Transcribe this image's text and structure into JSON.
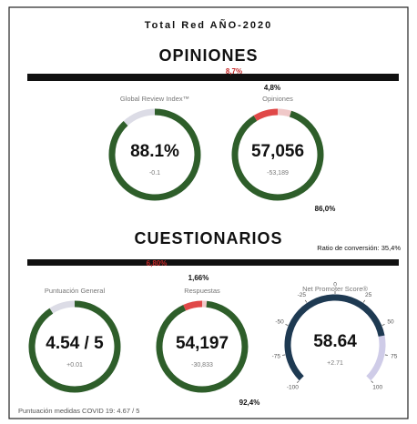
{
  "header": {
    "title": "Total Red AÑO-2020"
  },
  "sections": [
    {
      "title": "OPINIONES",
      "gauges": [
        {
          "label": "Global Review Index™",
          "value": 88.1,
          "value_label": "88.1%",
          "delta": "-0.1",
          "ylim": [
            0,
            100
          ],
          "color": "#2e5e2a",
          "track": "#dcdce6"
        },
        {
          "label": "Opiniones",
          "value_label": "57,056",
          "delta": "-53,189",
          "segments": [
            {
              "value": 4.8,
              "label": "4,8%",
              "color": "#f0c8c8"
            },
            {
              "value": 86.0,
              "label": "86,0%",
              "color": "#2e5e2a"
            },
            {
              "value": 8.7,
              "label": "8,7%",
              "color": "#e04848"
            }
          ]
        }
      ]
    },
    {
      "title": "CUESTIONARIOS",
      "note": "Ratio de conversión: 35,4%",
      "gauges": [
        {
          "label": "Puntuación General",
          "value": 4.54,
          "value_label": "4.54 / 5",
          "delta": "+0.01",
          "ylim": [
            0,
            5
          ],
          "color": "#2e5e2a",
          "track": "#dcdce6"
        },
        {
          "label": "Respuestas",
          "value_label": "54,197",
          "delta": "-30,833",
          "segments": [
            {
              "value": 1.66,
              "label": "1,66%",
              "color": "#f0c8c8"
            },
            {
              "value": 92.4,
              "label": "92,4%",
              "color": "#2e5e2a"
            },
            {
              "value": 6.8,
              "label": "6,80%",
              "color": "#e04848"
            }
          ]
        },
        {
          "label": "Net Promoter Score®",
          "value": 58.64,
          "value_label": "58.64",
          "delta": "+2.71",
          "ylim": [
            -100,
            100
          ],
          "yticks": [
            -100,
            -75,
            -50,
            -25,
            0,
            25,
            50,
            75,
            100
          ],
          "color": "#1e3a52",
          "track": "#cfcce8",
          "dial": true
        }
      ]
    }
  ],
  "footer": "Puntuación medidas COVID 19: 4.67 / 5"
}
